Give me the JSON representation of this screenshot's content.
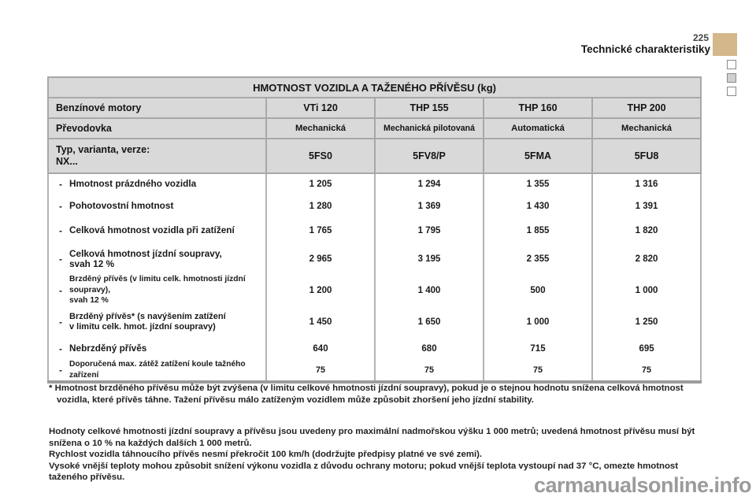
{
  "page": {
    "number": "225",
    "section_title": "Technické charakteristiky",
    "watermark": "carmanualsonline.info",
    "tab_color": "#d5b78c"
  },
  "table": {
    "title": "HMOTNOST VOZIDLA A TAŽENÉHO PŘÍVĚSU (kg)",
    "bullet_char": "-",
    "engine_row": {
      "label": "Benzínové motory",
      "values": [
        "VTi 120",
        "THP 155",
        "THP 160",
        "THP 200"
      ]
    },
    "gearbox_row": {
      "label": "Převodovka",
      "values": [
        "Mechanická",
        "Mechanická pilotovaná",
        "Automatická",
        "Mechanická"
      ]
    },
    "type_row": {
      "label_line1": "Typ, varianta, verze:",
      "label_line2": "NX...",
      "values": [
        "5FS0",
        "5FV8/P",
        "5FMA",
        "5FU8"
      ]
    },
    "rows": [
      {
        "label": "Hmotnost prázdného vozidla",
        "values": [
          "1 205",
          "1 294",
          "1 355",
          "1 316"
        ]
      },
      {
        "label": "Pohotovostní hmotnost",
        "values": [
          "1 280",
          "1 369",
          "1 430",
          "1 391"
        ]
      },
      {
        "label": "Celková hmotnost vozidla při zatížení",
        "values": [
          "1 765",
          "1 795",
          "1 855",
          "1 820"
        ]
      },
      {
        "label": "Celková hmotnost jízdní soupravy,\nsvah 12 %",
        "values": [
          "2 965",
          "3 195",
          "2 355",
          "2 820"
        ]
      },
      {
        "label": "Brzděný přívěs (v limitu celk. hmotnosti jízdní soupravy),\nsvah 12 %",
        "values": [
          "1 200",
          "1 400",
          "500",
          "1 000"
        ]
      },
      {
        "label": "Brzděný přívěs* (s navýšením zatížení\nv limitu celk. hmot. jízdní soupravy)",
        "values": [
          "1 450",
          "1 650",
          "1 000",
          "1 250"
        ]
      },
      {
        "label": "Nebrzděný přívěs",
        "values": [
          "640",
          "680",
          "715",
          "695"
        ]
      },
      {
        "label": "Doporučená max. zátěž zatížení koule tažného zařízení",
        "values": [
          "75",
          "75",
          "75",
          "75"
        ]
      }
    ]
  },
  "notes": {
    "footnote": "* Hmotnost brzděného přívěsu může být zvýšena (v limitu celkové hmotnosti jízdní soupravy), pokud je o stejnou hodnotu snížena celková hmotnost vozidla, které přívěs táhne. Tažení přívěsu málo zatíženým vozidlem může způsobit zhoršení jeho jízdní stability.",
    "paragraph1": "Hodnoty celkové hmotnosti jízdní soupravy a přívěsu jsou uvedeny pro maximální nadmořskou výšku 1 000 metrů; uvedená hmotnost přívěsu musí být snížena o 10 % na každých dalších 1 000 metrů.",
    "paragraph2": "Rychlost vozidla táhnoucího přívěs nesmí překročit 100 km/h (dodržujte předpisy platné ve své zemi).",
    "paragraph3": "Vysoké vnější teploty mohou způsobit snížení výkonu vozidla z důvodu ochrany motoru; pokud vnější teplota vystoupí nad 37 °C, omezte hmotnost taženého přívěsu."
  }
}
